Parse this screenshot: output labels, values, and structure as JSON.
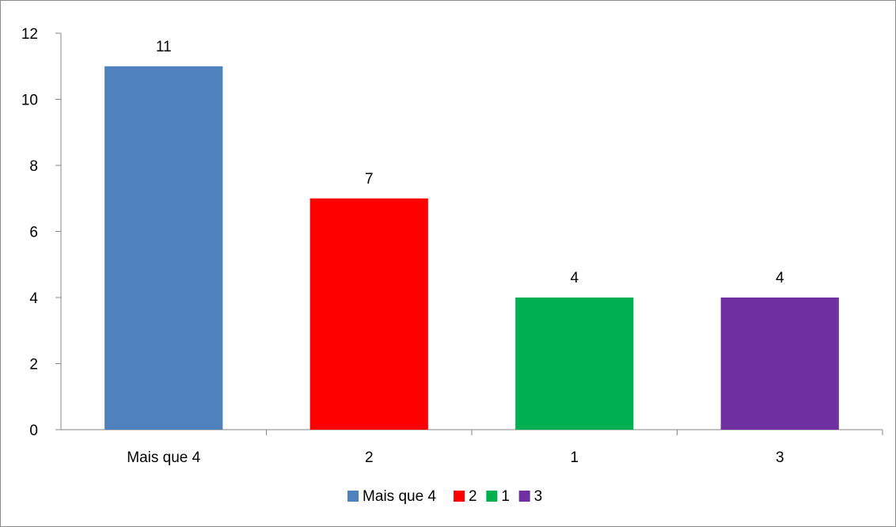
{
  "chart_data": {
    "type": "bar",
    "categories": [
      "Mais que 4",
      "2",
      "1",
      "3"
    ],
    "values": [
      11,
      7,
      4,
      4
    ],
    "colors": [
      "#4f81bd",
      "#ff0000",
      "#00b050",
      "#7030a0"
    ],
    "data_labels": [
      "11",
      "7",
      "4",
      "4"
    ],
    "y_ticks": [
      "0",
      "2",
      "4",
      "6",
      "8",
      "10",
      "12"
    ],
    "ylim": [
      0,
      12
    ],
    "grid": false,
    "legend": {
      "position": "bottom",
      "entries": [
        "Mais que 4",
        "2",
        "1",
        "3"
      ]
    },
    "title": "",
    "xlabel": "",
    "ylabel": ""
  }
}
